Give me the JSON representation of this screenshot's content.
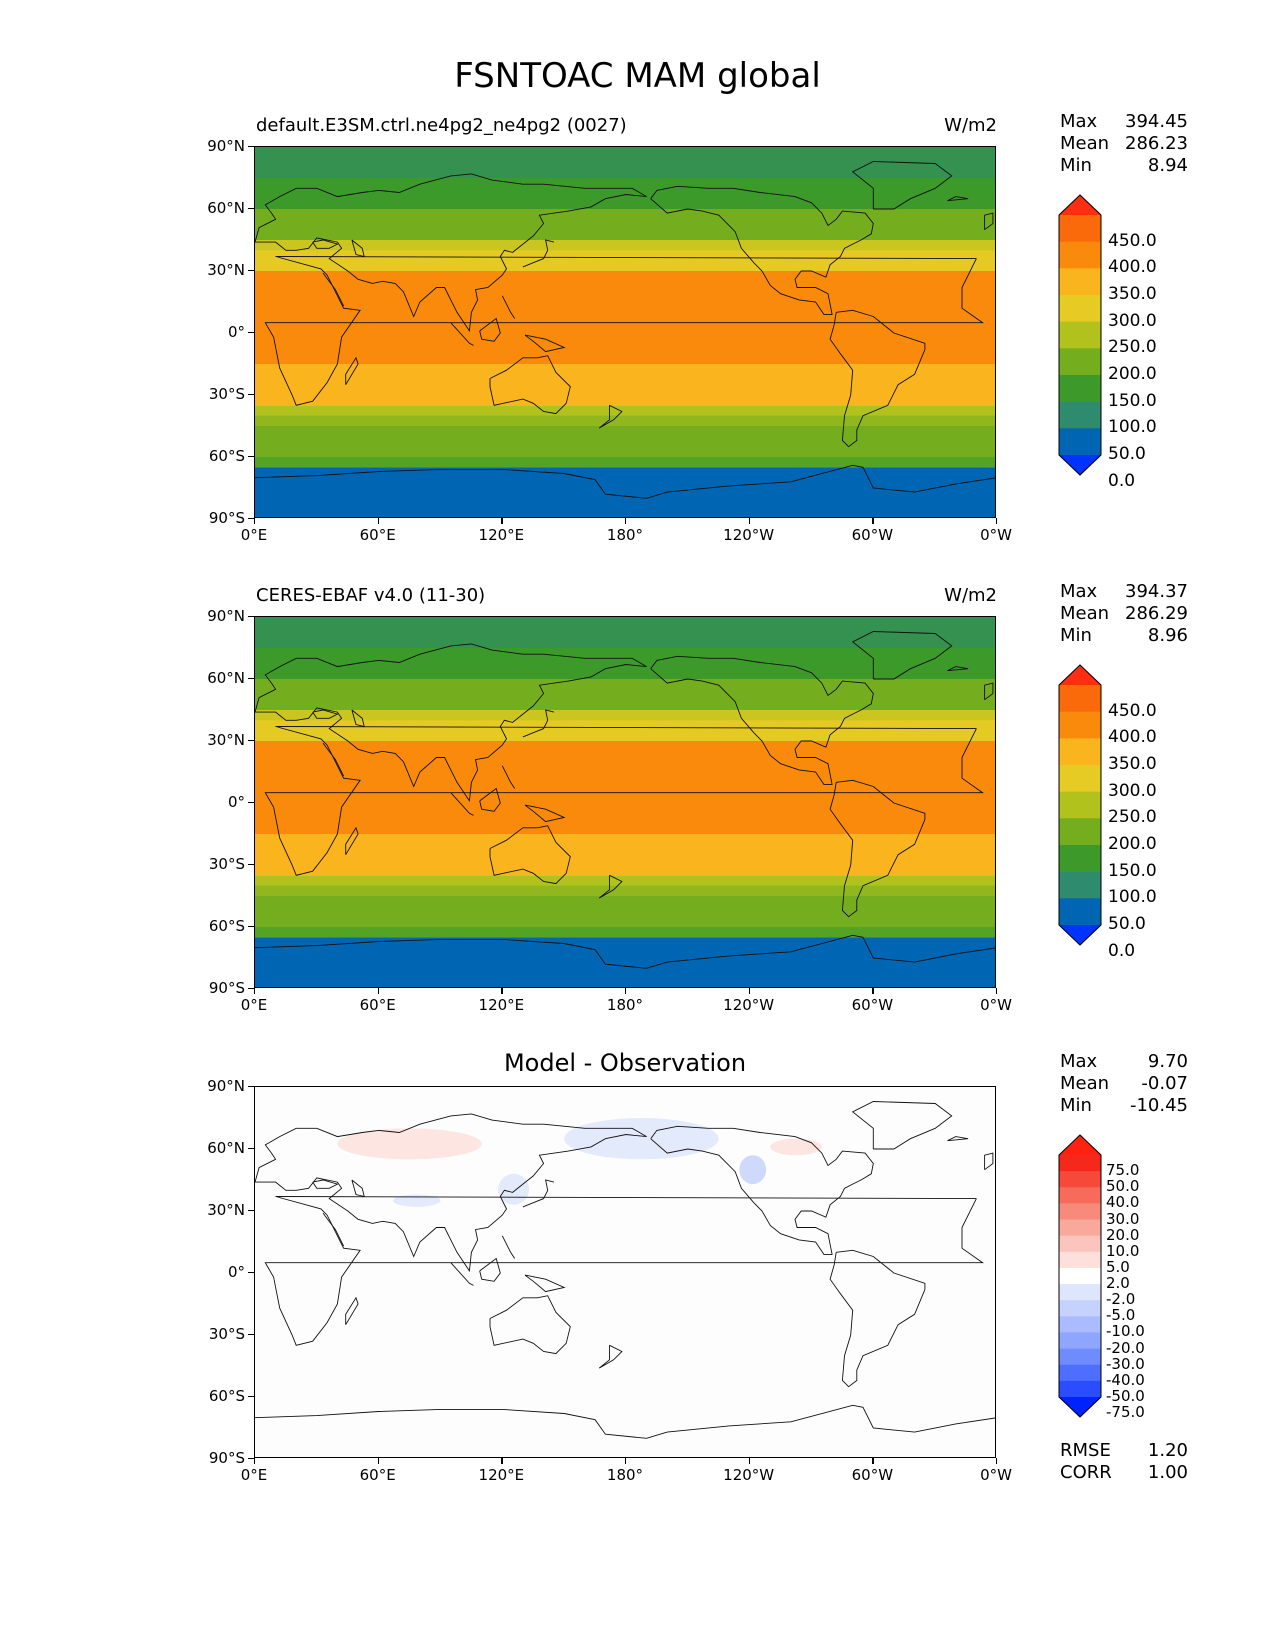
{
  "title": "FSNTOAC MAM global",
  "panels": [
    {
      "left_title": "default.E3SM.ctrl.ne4pg2_ne4pg2 (0027)",
      "right_title": "W/m2",
      "center_title": "",
      "stats": {
        "max_label": "Max",
        "max": "394.45",
        "mean_label": "Mean",
        "mean": "286.23",
        "min_label": "Min",
        "min": "8.94"
      }
    },
    {
      "left_title": "CERES-EBAF v4.0 (11-30)",
      "right_title": "W/m2",
      "center_title": "",
      "stats": {
        "max_label": "Max",
        "max": "394.37",
        "mean_label": "Mean",
        "mean": "286.29",
        "min_label": "Min",
        "min": "8.96"
      }
    },
    {
      "left_title": "",
      "right_title": "",
      "center_title": "Model - Observation",
      "stats": {
        "max_label": "Max",
        "max": "9.70",
        "mean_label": "Mean",
        "mean": "-0.07",
        "min_label": "Min",
        "min": "-10.45"
      }
    }
  ],
  "diff_metrics": {
    "rmse_label": "RMSE",
    "rmse": "1.20",
    "corr_label": "CORR",
    "corr": "1.00"
  },
  "lat_ticks": [
    "90°N",
    "60°N",
    "30°N",
    "0°",
    "30°S",
    "60°S",
    "90°S"
  ],
  "lon_ticks": [
    "0°E",
    "60°E",
    "120°E",
    "180°",
    "120°W",
    "60°W",
    "0°W"
  ],
  "colorbar_abs": {
    "labels": [
      "450.0",
      "400.0",
      "350.0",
      "300.0",
      "250.0",
      "200.0",
      "150.0",
      "100.0",
      "50.0",
      "0.0"
    ],
    "colors": [
      "#0033ff",
      "#0066b3",
      "#2e8b6e",
      "#3d9a2a",
      "#74ae1f",
      "#b2c21c",
      "#e6cb24",
      "#fab41e",
      "#f98a0b",
      "#fa6a0b",
      "#ff2d12"
    ]
  },
  "colorbar_diff": {
    "labels": [
      "75.0",
      "50.0",
      "40.0",
      "30.0",
      "20.0",
      "10.0",
      "5.0",
      "2.0",
      "-2.0",
      "-5.0",
      "-10.0",
      "-20.0",
      "-30.0",
      "-40.0",
      "-50.0",
      "-75.0"
    ],
    "colors": [
      "#0022ff",
      "#2a4dff",
      "#4d6eff",
      "#6f8cff",
      "#8ea6ff",
      "#aabcff",
      "#c5d2fb",
      "#dee6fb",
      "#ffffff",
      "#fde0dc",
      "#fbc4bc",
      "#f9a89c",
      "#f88a7c",
      "#f76b5b",
      "#f6493a",
      "#f5281b",
      "#ff2210"
    ]
  },
  "chart_data": [
    {
      "type": "heatmap",
      "title": "default.E3SM.ctrl.ne4pg2_ne4pg2 (0027)",
      "units": "W/m2",
      "x": "longitude 0°E to 0°W",
      "y": "latitude 90°S to 90°N",
      "zonal_band_values": [
        {
          "lat_range": [
            60,
            90
          ],
          "value": 100
        },
        {
          "lat_range": [
            45,
            60
          ],
          "value": 175
        },
        {
          "lat_range": [
            30,
            45
          ],
          "value": 275
        },
        {
          "lat_range": [
            -15,
            30
          ],
          "value": 370
        },
        {
          "lat_range": [
            -35,
            -15
          ],
          "value": 325
        },
        {
          "lat_range": [
            -45,
            -35
          ],
          "value": 225
        },
        {
          "lat_range": [
            -65,
            -45
          ],
          "value": 150
        },
        {
          "lat_range": [
            -90,
            -65
          ],
          "value": 25
        }
      ],
      "stats": {
        "max": 394.45,
        "mean": 286.23,
        "min": 8.94
      },
      "levels": [
        0,
        50,
        100,
        150,
        200,
        250,
        300,
        350,
        400,
        450
      ]
    },
    {
      "type": "heatmap",
      "title": "CERES-EBAF v4.0 (11-30)",
      "units": "W/m2",
      "zonal_band_values": [
        {
          "lat_range": [
            60,
            90
          ],
          "value": 100
        },
        {
          "lat_range": [
            45,
            60
          ],
          "value": 175
        },
        {
          "lat_range": [
            30,
            45
          ],
          "value": 275
        },
        {
          "lat_range": [
            -15,
            30
          ],
          "value": 370
        },
        {
          "lat_range": [
            -35,
            -15
          ],
          "value": 325
        },
        {
          "lat_range": [
            -45,
            -35
          ],
          "value": 225
        },
        {
          "lat_range": [
            -65,
            -45
          ],
          "value": 150
        },
        {
          "lat_range": [
            -90,
            -65
          ],
          "value": 25
        }
      ],
      "stats": {
        "max": 394.37,
        "mean": 286.29,
        "min": 8.96
      },
      "levels": [
        0,
        50,
        100,
        150,
        200,
        250,
        300,
        350,
        400,
        450
      ]
    },
    {
      "type": "heatmap",
      "title": "Model - Observation",
      "stats": {
        "max": 9.7,
        "mean": -0.07,
        "min": -10.45,
        "rmse": 1.2,
        "corr": 1.0
      },
      "levels": [
        -75,
        -50,
        -40,
        -30,
        -20,
        -10,
        -5,
        -2,
        2,
        5,
        10,
        20,
        30,
        40,
        50,
        75
      ],
      "anomalies": [
        {
          "region": "northern Eurasia",
          "lon_range": [
            40,
            110
          ],
          "lat_range": [
            55,
            70
          ],
          "value": 3
        },
        {
          "region": "North Pacific / Bering",
          "lon_range": [
            150,
            225
          ],
          "lat_range": [
            55,
            75
          ],
          "value": -3
        },
        {
          "region": "western North America",
          "lon_range": [
            235,
            248
          ],
          "lat_range": [
            43,
            57
          ],
          "value": -7
        },
        {
          "region": "eastern Canada",
          "lon_range": [
            250,
            275
          ],
          "lat_range": [
            57,
            65
          ],
          "value": 3
        },
        {
          "region": "central Asia",
          "lon_range": [
            67,
            90
          ],
          "lat_range": [
            32,
            38
          ],
          "value": -3
        },
        {
          "region": "east Asia",
          "lon_range": [
            118,
            133
          ],
          "lat_range": [
            33,
            48
          ],
          "value": -3
        }
      ]
    }
  ]
}
